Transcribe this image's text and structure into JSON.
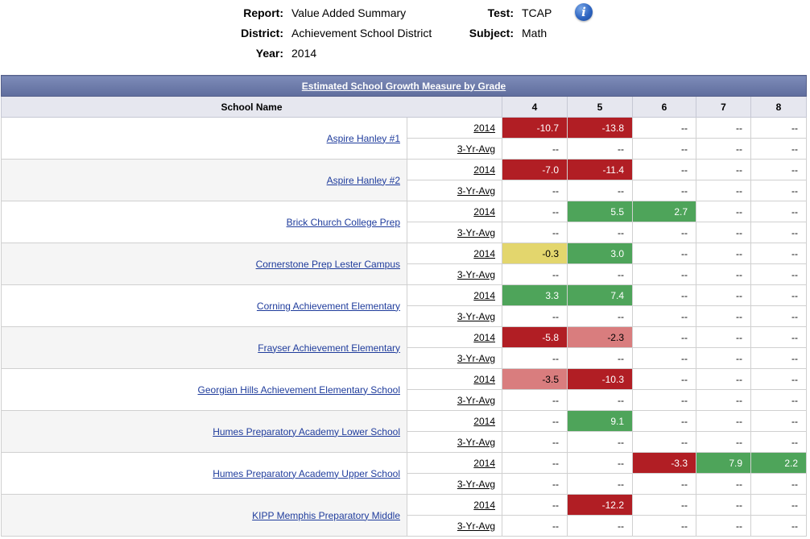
{
  "meta": {
    "report_label": "Report:",
    "report_value": "Value Added Summary",
    "district_label": "District:",
    "district_value": "Achievement School District",
    "year_label": "Year:",
    "year_value": "2014",
    "test_label": "Test:",
    "test_value": "TCAP",
    "subject_label": "Subject:",
    "subject_value": "Math",
    "info_icon": "info-icon"
  },
  "table": {
    "title": "Estimated School Growth Measure by Grade",
    "school_header": "School Name",
    "grades": [
      "4",
      "5",
      "6",
      "7",
      "8"
    ],
    "colors": {
      "dark_red": "#b11e24",
      "light_red": "#d97d7e",
      "green": "#4ea45a",
      "yellow": "#e3d66d"
    },
    "schools": [
      {
        "name": "Aspire Hanley #1",
        "rows": [
          {
            "label": "2014",
            "values": [
              "-10.7",
              "-13.8",
              "--",
              "--",
              "--"
            ],
            "colors": [
              "dark_red",
              "dark_red",
              "",
              "",
              ""
            ]
          },
          {
            "label": "3-Yr-Avg",
            "values": [
              "--",
              "--",
              "--",
              "--",
              "--"
            ],
            "colors": [
              "",
              "",
              "",
              "",
              ""
            ]
          }
        ]
      },
      {
        "name": "Aspire Hanley #2",
        "rows": [
          {
            "label": "2014",
            "values": [
              "-7.0",
              "-11.4",
              "--",
              "--",
              "--"
            ],
            "colors": [
              "dark_red",
              "dark_red",
              "",
              "",
              ""
            ]
          },
          {
            "label": "3-Yr-Avg",
            "values": [
              "--",
              "--",
              "--",
              "--",
              "--"
            ],
            "colors": [
              "",
              "",
              "",
              "",
              ""
            ]
          }
        ]
      },
      {
        "name": "Brick Church College Prep",
        "rows": [
          {
            "label": "2014",
            "values": [
              "--",
              "5.5",
              "2.7",
              "--",
              "--"
            ],
            "colors": [
              "",
              "green",
              "green",
              "",
              ""
            ]
          },
          {
            "label": "3-Yr-Avg",
            "values": [
              "--",
              "--",
              "--",
              "--",
              "--"
            ],
            "colors": [
              "",
              "",
              "",
              "",
              ""
            ]
          }
        ]
      },
      {
        "name": "Cornerstone Prep Lester Campus",
        "rows": [
          {
            "label": "2014",
            "values": [
              "-0.3",
              "3.0",
              "--",
              "--",
              "--"
            ],
            "colors": [
              "yellow",
              "green",
              "",
              "",
              ""
            ]
          },
          {
            "label": "3-Yr-Avg",
            "values": [
              "--",
              "--",
              "--",
              "--",
              "--"
            ],
            "colors": [
              "",
              "",
              "",
              "",
              ""
            ]
          }
        ]
      },
      {
        "name": "Corning Achievement Elementary",
        "rows": [
          {
            "label": "2014",
            "values": [
              "3.3",
              "7.4",
              "--",
              "--",
              "--"
            ],
            "colors": [
              "green",
              "green",
              "",
              "",
              ""
            ]
          },
          {
            "label": "3-Yr-Avg",
            "values": [
              "--",
              "--",
              "--",
              "--",
              "--"
            ],
            "colors": [
              "",
              "",
              "",
              "",
              ""
            ]
          }
        ]
      },
      {
        "name": "Frayser Achievement Elementary",
        "rows": [
          {
            "label": "2014",
            "values": [
              "-5.8",
              "-2.3",
              "--",
              "--",
              "--"
            ],
            "colors": [
              "dark_red",
              "light_red",
              "",
              "",
              ""
            ]
          },
          {
            "label": "3-Yr-Avg",
            "values": [
              "--",
              "--",
              "--",
              "--",
              "--"
            ],
            "colors": [
              "",
              "",
              "",
              "",
              ""
            ]
          }
        ]
      },
      {
        "name": "Georgian Hills Achievement Elementary School",
        "rows": [
          {
            "label": "2014",
            "values": [
              "-3.5",
              "-10.3",
              "--",
              "--",
              "--"
            ],
            "colors": [
              "light_red",
              "dark_red",
              "",
              "",
              ""
            ]
          },
          {
            "label": "3-Yr-Avg",
            "values": [
              "--",
              "--",
              "--",
              "--",
              "--"
            ],
            "colors": [
              "",
              "",
              "",
              "",
              ""
            ]
          }
        ]
      },
      {
        "name": "Humes Preparatory Academy Lower School",
        "rows": [
          {
            "label": "2014",
            "values": [
              "--",
              "9.1",
              "--",
              "--",
              "--"
            ],
            "colors": [
              "",
              "green",
              "",
              "",
              ""
            ]
          },
          {
            "label": "3-Yr-Avg",
            "values": [
              "--",
              "--",
              "--",
              "--",
              "--"
            ],
            "colors": [
              "",
              "",
              "",
              "",
              ""
            ]
          }
        ]
      },
      {
        "name": "Humes Preparatory Academy Upper School",
        "rows": [
          {
            "label": "2014",
            "values": [
              "--",
              "--",
              "-3.3",
              "7.9",
              "2.2"
            ],
            "colors": [
              "",
              "",
              "dark_red",
              "green",
              "green"
            ]
          },
          {
            "label": "3-Yr-Avg",
            "values": [
              "--",
              "--",
              "--",
              "--",
              "--"
            ],
            "colors": [
              "",
              "",
              "",
              "",
              ""
            ]
          }
        ]
      },
      {
        "name": "KIPP Memphis Preparatory Middle",
        "rows": [
          {
            "label": "2014",
            "values": [
              "--",
              "-12.2",
              "--",
              "--",
              "--"
            ],
            "colors": [
              "",
              "dark_red",
              "",
              "",
              ""
            ]
          },
          {
            "label": "3-Yr-Avg",
            "values": [
              "--",
              "--",
              "--",
              "--",
              "--"
            ],
            "colors": [
              "",
              "",
              "",
              "",
              ""
            ]
          }
        ]
      }
    ]
  }
}
